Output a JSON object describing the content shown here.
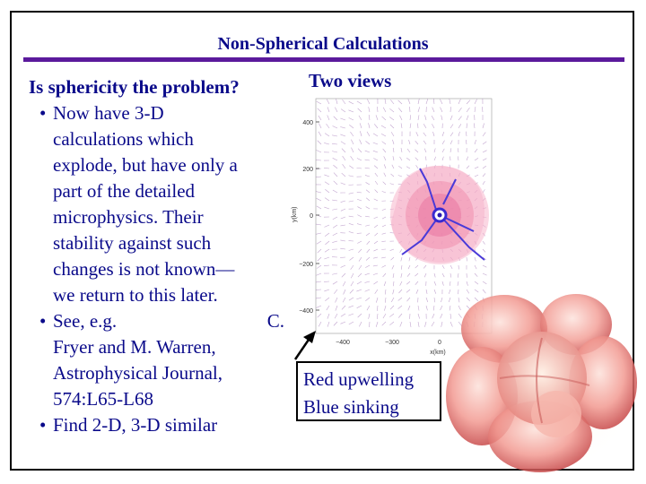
{
  "slide": {
    "title": "Non-Spherical Calculations",
    "question": "Is sphericity the problem?",
    "bullets": [
      {
        "lines": [
          "Now have 3-D",
          "calculations which",
          "explode, but have only a",
          "part of the detailed",
          "microphysics. Their",
          "stability against such",
          "changes is not known—",
          "we return to this later."
        ]
      },
      {
        "first_left": "See, e.g.",
        "first_right": "C.",
        "lines": [
          "Fryer and M. Warren,",
          "Astrophysical Journal,",
          "574:L65-L68"
        ]
      },
      {
        "lines": [
          "Find 2-D, 3-D similar"
        ]
      }
    ],
    "two_views": "Two views",
    "callout": {
      "line1": "Red upwelling",
      "line2": "Blue sinking"
    }
  },
  "plot": {
    "ylabel": "y(km)",
    "xlabel": "x(km)",
    "yticks": [
      "400",
      "200",
      "0",
      "−200",
      "−400"
    ],
    "xticks": [
      "−400",
      "−300",
      "0"
    ],
    "colors": {
      "upwelling": "#e0508a",
      "sinking": "#4a3ad8",
      "arrows": "#9a6ab0"
    }
  },
  "colors": {
    "title": "#0a0a8a",
    "rule": "#5b1a9c"
  }
}
